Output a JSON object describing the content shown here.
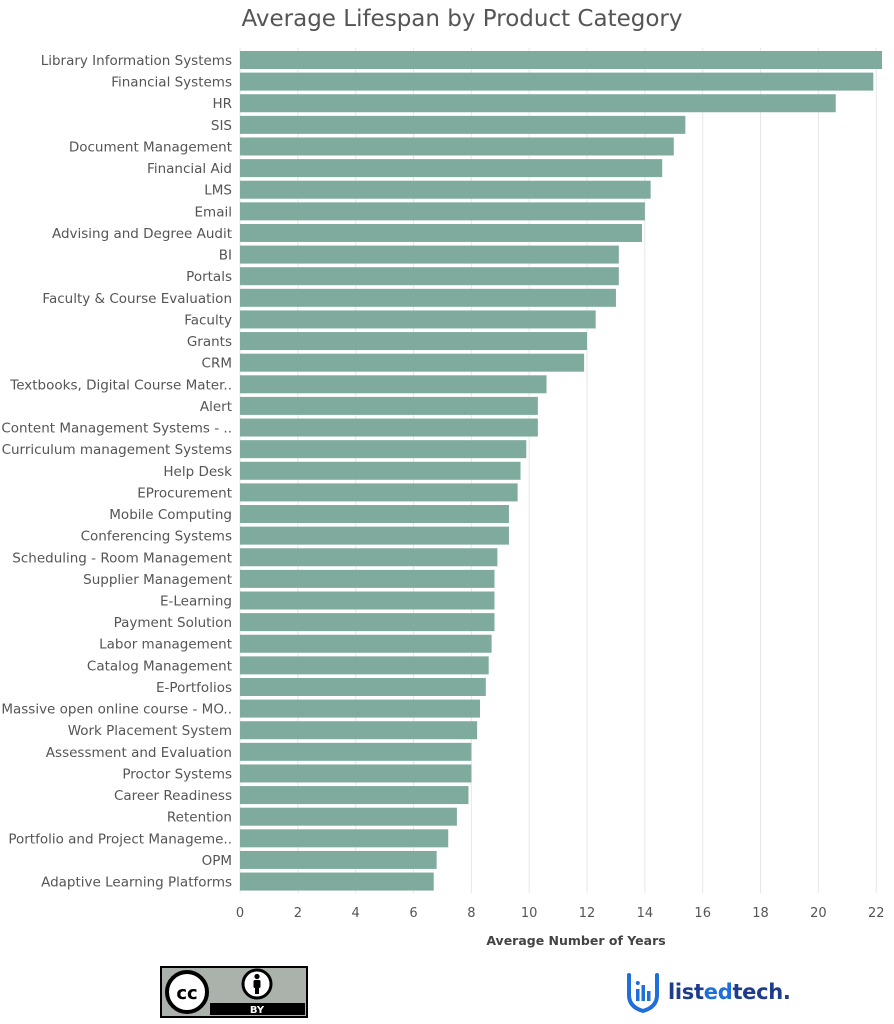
{
  "colors": {
    "bar": "#7fab9e",
    "grid": "#e6e6e6",
    "text": "#555555",
    "brand_dark": "#1f3c8a",
    "brand_accent": "#1e6fd9"
  },
  "footer": {
    "license_icon": "cc-by-icon",
    "license_label": "BY",
    "brand_icon": "listedtech-shield-icon",
    "brand_name_prefix": "list",
    "brand_name_accent": "ed",
    "brand_name_suffix": "tech."
  },
  "chart_data": {
    "type": "bar",
    "orientation": "horizontal",
    "title": "Average Lifespan by Product Category",
    "xlabel": "Average Number of Years",
    "ylabel": "",
    "xlim": [
      0,
      22.2
    ],
    "xticks": [
      0,
      2,
      4,
      6,
      8,
      10,
      12,
      14,
      16,
      18,
      20,
      22
    ],
    "grid": true,
    "categories": [
      "Library Information Systems",
      "Financial Systems",
      "HR",
      "SIS",
      "Document Management",
      "Financial Aid",
      "LMS",
      "Email",
      "Advising and Degree Audit",
      "BI",
      "Portals",
      "Faculty & Course Evaluation",
      "Faculty",
      "Grants",
      "CRM",
      "Textbooks, Digital Course Mater..",
      "Alert",
      "Content Management Systems - ..",
      "Curriculum management Systems",
      "Help Desk",
      "EProcurement",
      "Mobile Computing",
      "Conferencing Systems",
      "Scheduling - Room Management",
      "Supplier Management",
      "E-Learning",
      "Payment Solution",
      "Labor management",
      "Catalog Management",
      "E-Portfolios",
      "Massive open online course - MO..",
      "Work Placement System",
      "Assessment and Evaluation",
      "Proctor Systems",
      "Career Readiness",
      "Retention",
      "Portfolio and Project Manageme..",
      "OPM",
      "Adaptive Learning Platforms"
    ],
    "values": [
      22.2,
      21.9,
      20.6,
      15.4,
      15.0,
      14.6,
      14.2,
      14.0,
      13.9,
      13.1,
      13.1,
      13.0,
      12.3,
      12.0,
      11.9,
      10.6,
      10.3,
      10.3,
      9.9,
      9.7,
      9.6,
      9.3,
      9.3,
      8.9,
      8.8,
      8.8,
      8.8,
      8.7,
      8.6,
      8.5,
      8.3,
      8.2,
      8.0,
      8.0,
      7.9,
      7.5,
      7.2,
      6.8,
      6.7
    ]
  }
}
